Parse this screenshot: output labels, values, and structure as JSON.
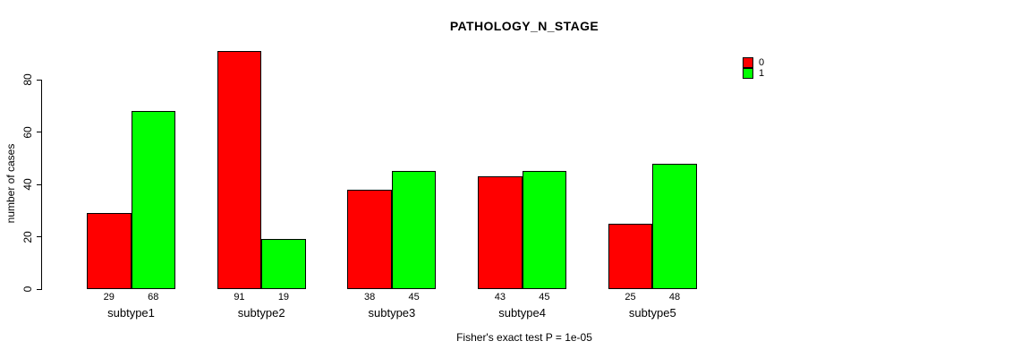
{
  "chart_data": {
    "type": "bar",
    "title": "PATHOLOGY_N_STAGE",
    "categories": [
      "subtype1",
      "subtype2",
      "subtype3",
      "subtype4",
      "subtype5"
    ],
    "series": [
      {
        "name": "0",
        "color": "#ff0000",
        "values": [
          29,
          91,
          38,
          43,
          25
        ]
      },
      {
        "name": "1",
        "color": "#00ff00",
        "values": [
          68,
          19,
          45,
          45,
          48
        ]
      }
    ],
    "xlabel": "",
    "ylabel": "number of cases",
    "ylim": [
      0,
      80
    ],
    "yticks": [
      0,
      20,
      40,
      60,
      80
    ],
    "grid": false,
    "show_bar_values": true,
    "legend_position": "top-right",
    "annotation": "Fisher's exact test P = 1e-05"
  }
}
